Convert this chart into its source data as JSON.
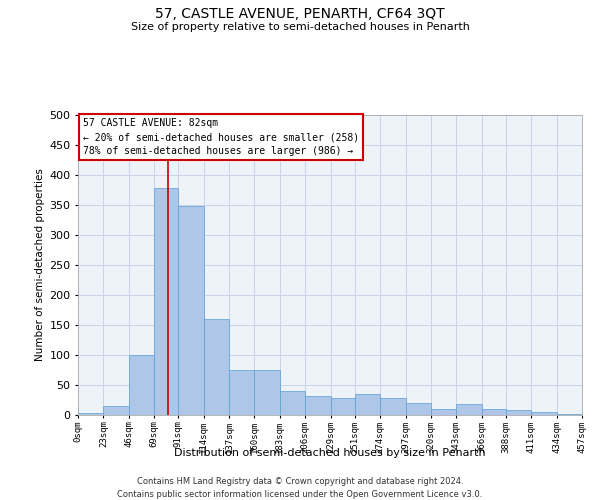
{
  "title": "57, CASTLE AVENUE, PENARTH, CF64 3QT",
  "subtitle": "Size of property relative to semi-detached houses in Penarth",
  "xlabel": "Distribution of semi-detached houses by size in Penarth",
  "ylabel": "Number of semi-detached properties",
  "footnote1": "Contains HM Land Registry data © Crown copyright and database right 2024.",
  "footnote2": "Contains public sector information licensed under the Open Government Licence v3.0.",
  "annotation_title": "57 CASTLE AVENUE: 82sqm",
  "annotation_line1": "← 20% of semi-detached houses are smaller (258)",
  "annotation_line2": "78% of semi-detached houses are larger (986) →",
  "property_size": 82,
  "bin_edges": [
    0,
    23,
    46,
    69,
    91,
    114,
    137,
    160,
    183,
    206,
    229,
    251,
    274,
    297,
    320,
    343,
    366,
    388,
    411,
    434,
    457
  ],
  "bar_heights": [
    3,
    15,
    100,
    378,
    348,
    160,
    75,
    75,
    40,
    32,
    28,
    35,
    28,
    20,
    10,
    18,
    10,
    8,
    5,
    2
  ],
  "bar_color": "#aec6e8",
  "bar_edge_color": "#5a9fd4",
  "vline_color": "#cc0000",
  "grid_color": "#c8d4e8",
  "bg_color": "#eef2f9",
  "ylim": [
    0,
    500
  ],
  "yticks": [
    0,
    50,
    100,
    150,
    200,
    250,
    300,
    350,
    400,
    450,
    500
  ]
}
